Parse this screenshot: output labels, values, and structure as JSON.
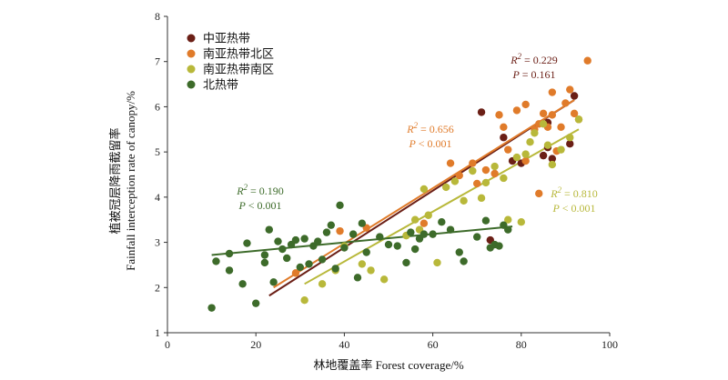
{
  "chart_data": {
    "type": "scatter",
    "xlabel": "林地覆盖率 Forest coverage/%",
    "ylabel_line1": "植被冠层降雨截留率",
    "ylabel_line2": "Fainfall interception rate of canopy/%",
    "xlim": [
      0,
      100
    ],
    "ylim": [
      1,
      8
    ],
    "xticks": [
      "0",
      "20",
      "40",
      "60",
      "80",
      "100"
    ],
    "yticks": [
      "1",
      "2",
      "3",
      "4",
      "5",
      "6",
      "7",
      "8"
    ],
    "grid": false,
    "legend_position": "top-left",
    "series": [
      {
        "name": "中亚热带",
        "color": "#6b1f16",
        "fit": {
          "x": [
            23,
            92
          ],
          "y": [
            1.82,
            6.15
          ]
        },
        "annotation": {
          "r2": "0.229",
          "p": "0.161"
        },
        "points": [
          [
            71,
            5.88
          ],
          [
            76,
            5.32
          ],
          [
            80,
            4.75
          ],
          [
            86,
            5.65
          ],
          [
            86,
            5.1
          ],
          [
            91,
            5.18
          ],
          [
            92,
            6.24
          ],
          [
            85,
            4.92
          ],
          [
            87,
            4.85
          ],
          [
            78,
            4.8
          ],
          [
            73,
            3.05
          ]
        ]
      },
      {
        "name": "南亚热带北区",
        "color": "#e07b2a",
        "fit": {
          "x": [
            24,
            92
          ],
          "y": [
            2.0,
            6.15
          ]
        },
        "annotation": {
          "r2": "0.656",
          "p": "< 0.001"
        },
        "points": [
          [
            29,
            2.32
          ],
          [
            39,
            3.25
          ],
          [
            45,
            3.32
          ],
          [
            58,
            3.42
          ],
          [
            64,
            4.75
          ],
          [
            66,
            4.48
          ],
          [
            69,
            4.75
          ],
          [
            72,
            4.6
          ],
          [
            74,
            4.52
          ],
          [
            75,
            5.82
          ],
          [
            76,
            5.55
          ],
          [
            77,
            5.05
          ],
          [
            79,
            5.92
          ],
          [
            81,
            6.05
          ],
          [
            83,
            5.5
          ],
          [
            84,
            5.62
          ],
          [
            85,
            5.85
          ],
          [
            87,
            5.82
          ],
          [
            87,
            6.32
          ],
          [
            86,
            5.55
          ],
          [
            89,
            5.55
          ],
          [
            90,
            6.08
          ],
          [
            91,
            6.38
          ],
          [
            92,
            5.85
          ],
          [
            93,
            5.72
          ],
          [
            95,
            7.02
          ],
          [
            84,
            4.08
          ],
          [
            88,
            5.02
          ],
          [
            81,
            4.8
          ],
          [
            70,
            4.3
          ]
        ]
      },
      {
        "name": "南亚热带南区",
        "color": "#b8b83a",
        "fit": {
          "x": [
            31,
            93
          ],
          "y": [
            2.08,
            5.5
          ]
        },
        "annotation": {
          "r2": "0.810",
          "p": "< 0.001"
        },
        "points": [
          [
            31,
            1.72
          ],
          [
            35,
            2.08
          ],
          [
            38,
            2.38
          ],
          [
            40,
            2.92
          ],
          [
            44,
            2.52
          ],
          [
            46,
            2.38
          ],
          [
            49,
            2.18
          ],
          [
            54,
            3.15
          ],
          [
            56,
            3.5
          ],
          [
            57,
            3.28
          ],
          [
            58,
            4.18
          ],
          [
            59,
            3.6
          ],
          [
            61,
            2.55
          ],
          [
            63,
            4.22
          ],
          [
            65,
            4.35
          ],
          [
            67,
            3.92
          ],
          [
            69,
            4.58
          ],
          [
            71,
            3.98
          ],
          [
            72,
            4.32
          ],
          [
            74,
            4.68
          ],
          [
            76,
            4.42
          ],
          [
            77,
            3.5
          ],
          [
            79,
            4.88
          ],
          [
            80,
            3.45
          ],
          [
            81,
            4.95
          ],
          [
            82,
            5.22
          ],
          [
            83,
            5.42
          ],
          [
            85,
            5.62
          ],
          [
            86,
            5.15
          ],
          [
            87,
            4.72
          ],
          [
            89,
            5.05
          ],
          [
            91,
            5.32
          ],
          [
            93,
            5.72
          ]
        ]
      },
      {
        "name": "北热带",
        "color": "#3d6b2a",
        "fit": {
          "x": [
            10,
            78
          ],
          "y": [
            2.72,
            3.35
          ]
        },
        "annotation": {
          "r2": "0.190",
          "p": "< 0.001"
        },
        "points": [
          [
            10,
            1.55
          ],
          [
            11,
            2.58
          ],
          [
            14,
            2.38
          ],
          [
            14,
            2.75
          ],
          [
            17,
            2.08
          ],
          [
            18,
            2.98
          ],
          [
            20,
            1.65
          ],
          [
            22,
            2.55
          ],
          [
            22,
            2.72
          ],
          [
            23,
            3.28
          ],
          [
            24,
            2.12
          ],
          [
            25,
            3.02
          ],
          [
            26,
            2.85
          ],
          [
            27,
            2.65
          ],
          [
            28,
            2.95
          ],
          [
            29,
            3.05
          ],
          [
            30,
            2.45
          ],
          [
            31,
            3.08
          ],
          [
            32,
            2.52
          ],
          [
            33,
            2.92
          ],
          [
            34,
            3.02
          ],
          [
            35,
            2.62
          ],
          [
            36,
            3.22
          ],
          [
            37,
            3.38
          ],
          [
            38,
            2.42
          ],
          [
            39,
            3.82
          ],
          [
            40,
            2.88
          ],
          [
            42,
            3.18
          ],
          [
            43,
            2.22
          ],
          [
            44,
            3.42
          ],
          [
            45,
            2.78
          ],
          [
            48,
            3.12
          ],
          [
            50,
            2.95
          ],
          [
            52,
            2.92
          ],
          [
            54,
            2.55
          ],
          [
            55,
            3.22
          ],
          [
            56,
            2.85
          ],
          [
            57,
            3.08
          ],
          [
            58,
            3.18
          ],
          [
            60,
            3.18
          ],
          [
            62,
            3.45
          ],
          [
            64,
            3.28
          ],
          [
            66,
            2.78
          ],
          [
            67,
            2.58
          ],
          [
            70,
            3.12
          ],
          [
            72,
            3.48
          ],
          [
            73,
            2.88
          ],
          [
            74,
            2.95
          ],
          [
            75,
            2.92
          ],
          [
            76,
            3.38
          ],
          [
            77,
            3.28
          ]
        ]
      }
    ]
  }
}
